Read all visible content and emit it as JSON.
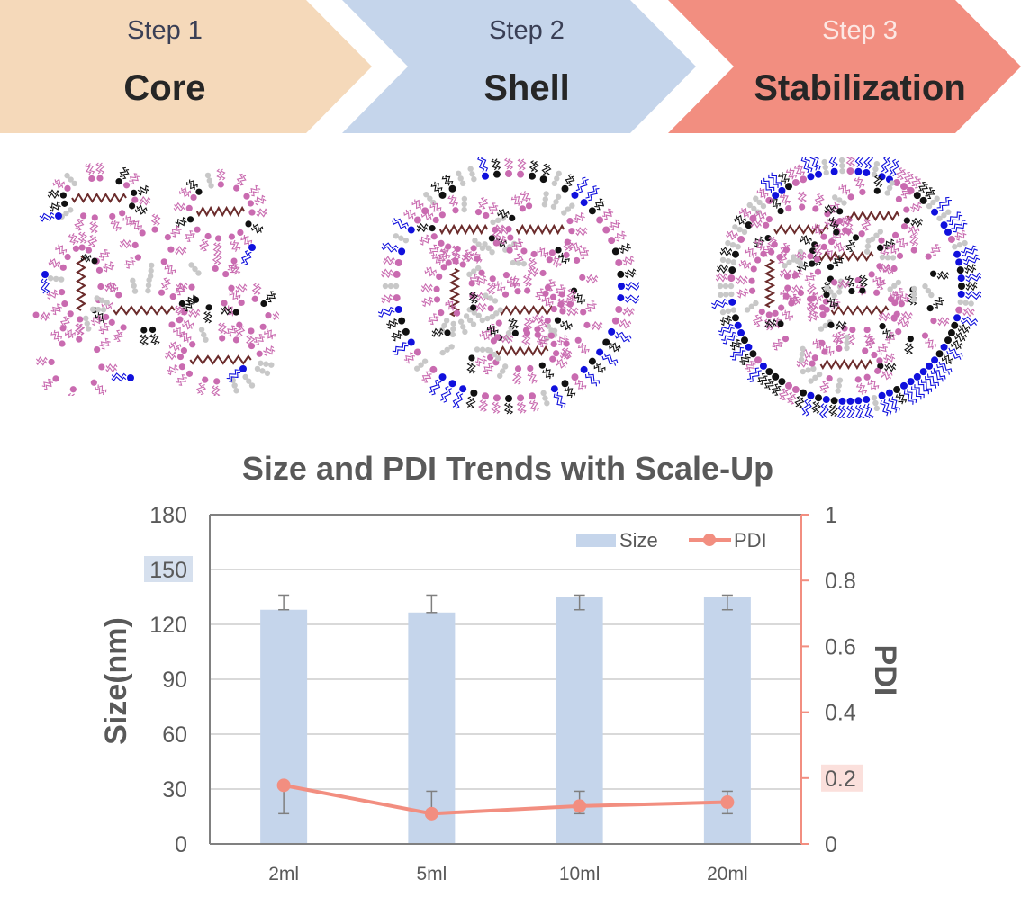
{
  "steps": [
    {
      "label": "Step 1",
      "title": "Core",
      "color": "#F5D9BA",
      "label_color": "#3A3F55"
    },
    {
      "label": "Step 2",
      "title": "Shell",
      "color": "#C5D5EB",
      "label_color": "#3A3F55"
    },
    {
      "label": "Step 3",
      "title": "Stabilization",
      "color": "#F28E80",
      "label_color": "#FCE8E4"
    }
  ],
  "illustrations": [
    {
      "name": "core-illustration",
      "description": "Scattered lipid micelle clusters with mRNA cores"
    },
    {
      "name": "shell-illustration",
      "description": "Micelle clusters encapsulated by a sparse lipid shell"
    },
    {
      "name": "stabilization-illustration",
      "description": "Micelle clusters encapsulated by a dense PEG-lipid stabilized shell"
    }
  ],
  "colors": {
    "bar": "#C5D5EB",
    "line": "#F28E80",
    "axis": "#808080",
    "grid": "#D9D9D9",
    "text": "#595959",
    "highlight_left": "#D6E0EE",
    "highlight_right": "#FBE0DC"
  },
  "chart_data": {
    "type": "bar",
    "title": "Size and PDI Trends with Scale-Up",
    "xlabel": "",
    "ylabel": "Size(nm)",
    "y2label": "PDI",
    "categories": [
      "2ml",
      "5ml",
      "10ml",
      "20ml"
    ],
    "ylim": [
      0,
      180
    ],
    "yticks": [
      0,
      30,
      60,
      90,
      120,
      150,
      180
    ],
    "y2lim": [
      0,
      1
    ],
    "y2ticks": [
      0,
      0.2,
      0.4,
      0.6,
      0.8,
      1
    ],
    "highlighted_ticks": {
      "left": "150",
      "right": "0.2"
    },
    "grid": true,
    "legend": {
      "position": "top-right",
      "entries": [
        "Size",
        "PDI"
      ]
    },
    "series": [
      {
        "name": "Size",
        "type": "bar",
        "axis": "left",
        "values": [
          128,
          126.5,
          135,
          135
        ],
        "error_upper": [
          136,
          136,
          136,
          136
        ],
        "error_lower": [
          128,
          126.5,
          128,
          128
        ]
      },
      {
        "name": "PDI",
        "type": "line",
        "axis": "right",
        "values": [
          0.178,
          0.092,
          0.115,
          0.127
        ],
        "error_upper": [
          0.178,
          0.16,
          0.16,
          0.16
        ],
        "error_lower": [
          0.092,
          0.092,
          0.092,
          0.092
        ]
      }
    ]
  }
}
